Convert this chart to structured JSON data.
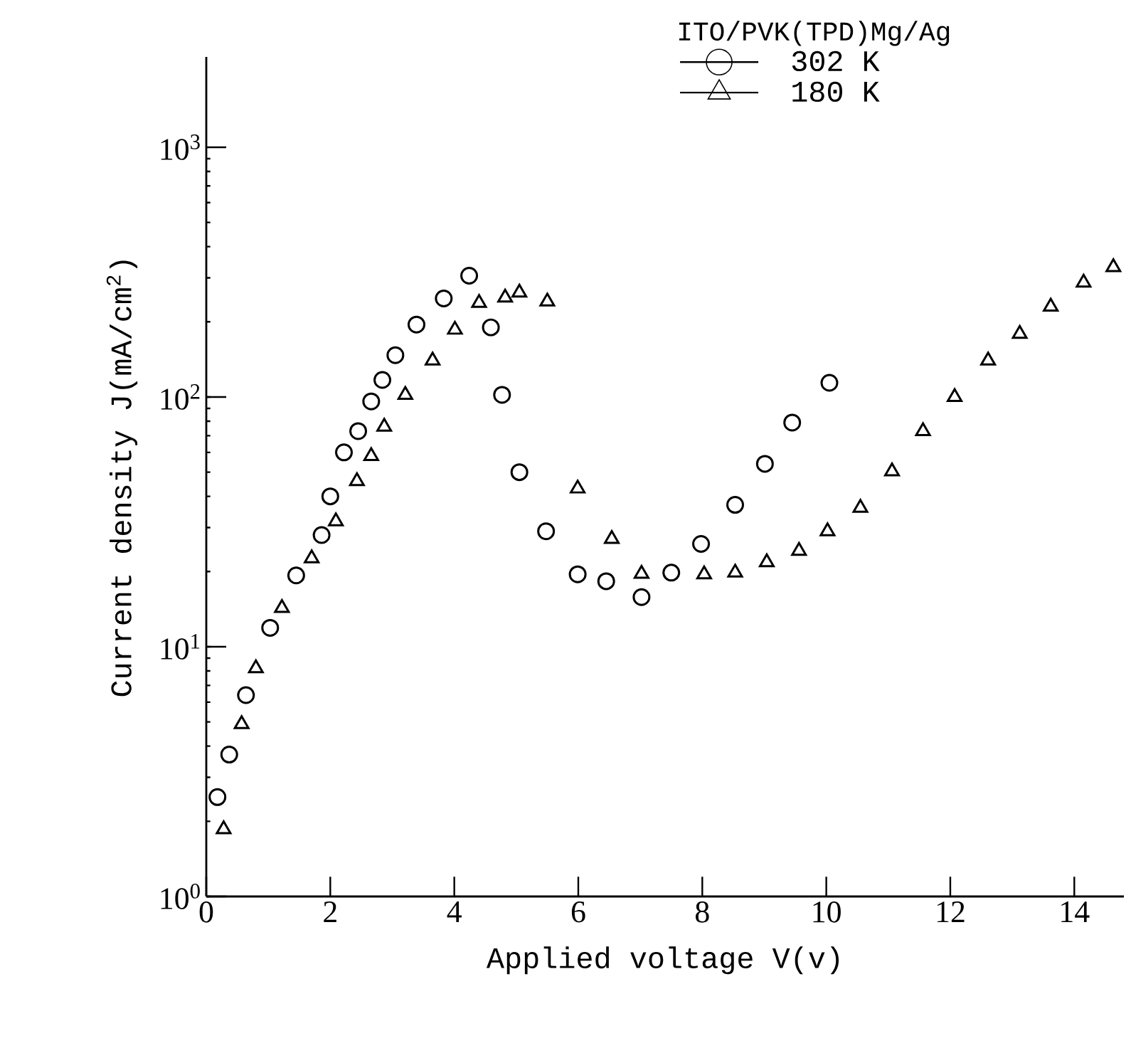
{
  "chart_data": {
    "type": "scatter",
    "xlabel": "Applied voltage  V(v)",
    "ylabel": "Current density J(mA/cm$^{2}$)",
    "legend_title": "ITO/PVK(TPD)Mg/Ag",
    "legend": "top right",
    "log": "y",
    "grid": false,
    "xlim": [
      0,
      14.8
    ],
    "ylim": [
      1,
      2300
    ],
    "xticks": [
      0,
      2,
      4,
      6,
      8,
      10,
      12,
      14
    ],
    "yticks": [
      {
        "value": 1,
        "label": "10$^{0}$"
      },
      {
        "value": 10,
        "label": "10$^{1}$"
      },
      {
        "value": 100,
        "label": "10$^{2}$"
      },
      {
        "value": 1000,
        "label": "10$^{3}$"
      }
    ],
    "series": [
      {
        "name": "302 K",
        "color": "#000000",
        "marker": "circle",
        "x": [
          0.18,
          0.37,
          0.64,
          1.03,
          1.45,
          1.86,
          2.0,
          2.22,
          2.45,
          2.66,
          2.84,
          3.05,
          3.39,
          3.83,
          4.24,
          4.59,
          4.77,
          5.05,
          5.48,
          5.99,
          6.45,
          7.02,
          7.5,
          7.98,
          8.53,
          9.01,
          9.45,
          10.05
        ],
        "values": [
          2.5,
          3.7,
          6.4,
          11.9,
          19.3,
          28,
          40,
          60,
          73,
          96,
          117,
          147,
          195,
          248,
          306,
          190,
          102,
          50,
          29,
          19.5,
          18.3,
          15.8,
          19.8,
          25.8,
          37,
          54,
          79,
          114
        ]
      },
      {
        "name": "180 K",
        "color": "#000000",
        "marker": "triangle",
        "x": [
          0.28,
          0.57,
          0.8,
          1.22,
          1.7,
          2.09,
          2.43,
          2.66,
          2.87,
          3.21,
          3.65,
          4.01,
          4.4,
          4.82,
          5.05,
          5.5,
          5.99,
          6.54,
          7.02,
          8.03,
          8.53,
          9.04,
          9.56,
          10.02,
          10.55,
          11.06,
          11.56,
          12.07,
          12.61,
          13.12,
          13.62,
          14.15,
          14.63
        ],
        "values": [
          1.86,
          4.9,
          8.2,
          14.3,
          22.6,
          31.8,
          46,
          58,
          76,
          102,
          140,
          186,
          238,
          250,
          262,
          241,
          43,
          27,
          19.6,
          19.5,
          19.8,
          21.8,
          24.2,
          29,
          36,
          50.4,
          73,
          100,
          140,
          179,
          230,
          287,
          331
        ]
      }
    ]
  }
}
